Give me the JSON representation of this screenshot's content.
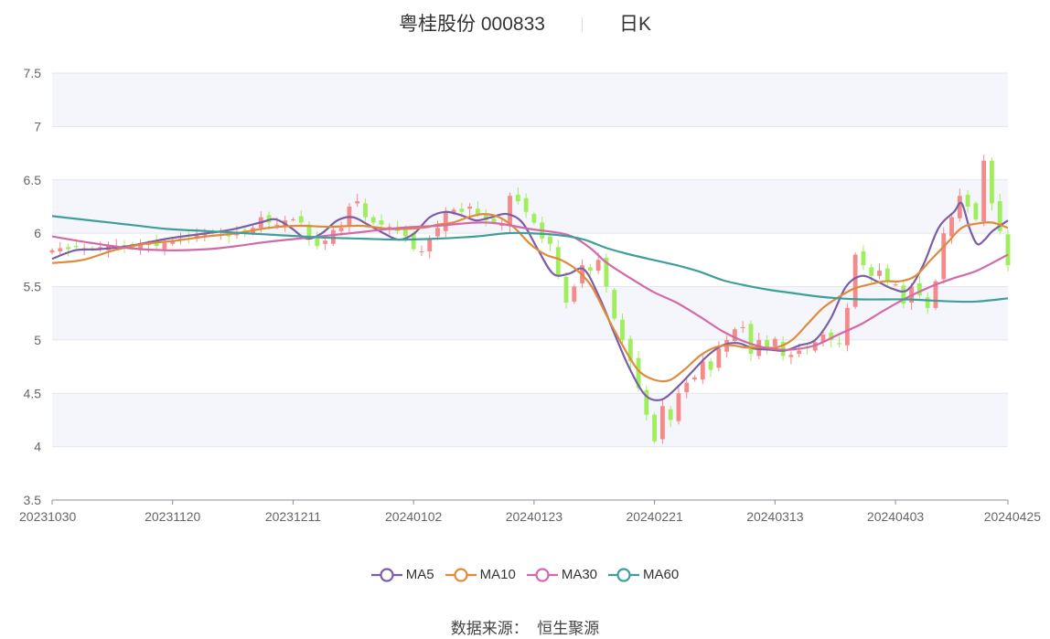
{
  "header": {
    "stock_title": "粤桂股份 000833",
    "period": "日K"
  },
  "source": {
    "label": "数据来源：",
    "provider": "恒生聚源"
  },
  "chart_data": {
    "type": "candlestick",
    "ylim": [
      3.5,
      7.5
    ],
    "yticks": [
      3.5,
      4,
      4.5,
      5,
      5.5,
      6,
      6.5,
      7,
      7.5
    ],
    "ytick_labels": [
      "3.5",
      "4",
      "4.5",
      "5",
      "5.5",
      "6",
      "6.5",
      "7",
      "7.5"
    ],
    "xtick_labels": [
      "20231030",
      "20231120",
      "20231211",
      "20240102",
      "20240123",
      "20240221",
      "20240313",
      "20240403",
      "20240425"
    ],
    "xtick_positions": [
      0,
      15,
      30,
      45,
      60,
      75,
      90,
      105,
      119
    ],
    "n_days": 120,
    "colors": {
      "up": "#f48a8a",
      "down": "#9fee5c",
      "MA5": "#7b5ea7",
      "MA10": "#e08a3c",
      "MA30": "#d36aa8",
      "MA60": "#3f9e9b"
    },
    "closes": [
      5.84,
      5.86,
      5.85,
      5.87,
      5.86,
      5.85,
      5.87,
      5.89,
      5.88,
      5.87,
      5.86,
      5.89,
      5.9,
      5.88,
      5.91,
      5.93,
      5.95,
      5.97,
      5.98,
      6.0,
      6.01,
      5.99,
      5.97,
      6.0,
      6.02,
      6.05,
      6.15,
      6.1,
      6.08,
      6.12,
      6.13,
      6.1,
      5.95,
      5.88,
      5.93,
      6.03,
      6.05,
      6.25,
      6.3,
      6.15,
      6.1,
      6.08,
      6.06,
      6.02,
      5.97,
      5.85,
      5.83,
      5.95,
      6.05,
      6.2,
      6.22,
      6.2,
      6.25,
      6.18,
      6.12,
      6.1,
      6.08,
      6.35,
      6.3,
      6.2,
      6.1,
      5.95,
      5.9,
      5.6,
      5.35,
      5.5,
      5.7,
      5.65,
      5.75,
      5.5,
      5.2,
      5.0,
      4.8,
      4.55,
      4.3,
      4.05,
      4.38,
      4.25,
      4.5,
      4.6,
      4.65,
      4.8,
      4.72,
      4.92,
      5.0,
      5.1,
      5.12,
      4.87,
      5.0,
      4.92,
      5.01,
      4.85,
      4.86,
      4.9,
      4.92,
      4.98,
      5.05,
      5.0,
      4.96,
      5.3,
      5.8,
      5.7,
      5.6,
      5.65,
      5.55,
      5.52,
      5.34,
      5.5,
      5.42,
      5.3,
      5.55,
      6.0,
      6.15,
      6.35,
      6.25,
      6.13,
      6.68,
      6.28,
      6.02,
      5.7
    ],
    "series": [
      {
        "name": "MA5",
        "points": [
          [
            0,
            5.76
          ],
          [
            3,
            5.84
          ],
          [
            6,
            5.85
          ],
          [
            10,
            5.88
          ],
          [
            15,
            5.95
          ],
          [
            19,
            5.99
          ],
          [
            23,
            6.03
          ],
          [
            27,
            6.1
          ],
          [
            29,
            6.13
          ],
          [
            31,
            6.05
          ],
          [
            33,
            5.95
          ],
          [
            35,
            6.0
          ],
          [
            37,
            6.12
          ],
          [
            39,
            6.15
          ],
          [
            41,
            6.08
          ],
          [
            43,
            6.0
          ],
          [
            45,
            5.94
          ],
          [
            47,
            6.0
          ],
          [
            49,
            6.15
          ],
          [
            51,
            6.2
          ],
          [
            53,
            6.17
          ],
          [
            55,
            6.12
          ],
          [
            57,
            6.15
          ],
          [
            59,
            6.18
          ],
          [
            61,
            6.1
          ],
          [
            63,
            5.85
          ],
          [
            65,
            5.62
          ],
          [
            67,
            5.62
          ],
          [
            69,
            5.66
          ],
          [
            71,
            5.4
          ],
          [
            73,
            5.05
          ],
          [
            75,
            4.72
          ],
          [
            77,
            4.48
          ],
          [
            79,
            4.44
          ],
          [
            81,
            4.55
          ],
          [
            83,
            4.7
          ],
          [
            85,
            4.85
          ],
          [
            87,
            4.95
          ],
          [
            89,
            4.97
          ],
          [
            91,
            4.92
          ],
          [
            93,
            4.91
          ],
          [
            95,
            4.9
          ],
          [
            97,
            4.95
          ],
          [
            99,
            5.0
          ],
          [
            101,
            5.2
          ],
          [
            103,
            5.5
          ],
          [
            105,
            5.6
          ],
          [
            107,
            5.55
          ],
          [
            109,
            5.48
          ],
          [
            111,
            5.47
          ],
          [
            113,
            5.7
          ],
          [
            115,
            6.05
          ],
          [
            117,
            6.2
          ],
          [
            118,
            6.28
          ],
          [
            119,
            6.05
          ],
          [
            120,
            5.9
          ],
          [
            121,
            5.94
          ],
          [
            122,
            6.02
          ],
          [
            124,
            6.12
          ]
        ]
      },
      {
        "name": "MA10",
        "points": [
          [
            0,
            5.72
          ],
          [
            4,
            5.75
          ],
          [
            8,
            5.84
          ],
          [
            12,
            5.9
          ],
          [
            16,
            5.93
          ],
          [
            20,
            5.97
          ],
          [
            24,
            6.0
          ],
          [
            28,
            6.05
          ],
          [
            32,
            6.07
          ],
          [
            36,
            6.06
          ],
          [
            40,
            6.07
          ],
          [
            44,
            6.04
          ],
          [
            48,
            6.05
          ],
          [
            50,
            6.08
          ],
          [
            52,
            6.1
          ],
          [
            54,
            6.15
          ],
          [
            56,
            6.18
          ],
          [
            58,
            6.15
          ],
          [
            60,
            6.05
          ],
          [
            62,
            5.9
          ],
          [
            64,
            5.8
          ],
          [
            66,
            5.75
          ],
          [
            68,
            5.66
          ],
          [
            70,
            5.5
          ],
          [
            72,
            5.22
          ],
          [
            74,
            4.95
          ],
          [
            76,
            4.72
          ],
          [
            78,
            4.63
          ],
          [
            80,
            4.62
          ],
          [
            82,
            4.72
          ],
          [
            84,
            4.85
          ],
          [
            86,
            4.93
          ],
          [
            88,
            4.95
          ],
          [
            90,
            4.93
          ],
          [
            92,
            4.93
          ],
          [
            94,
            4.93
          ],
          [
            96,
            5.0
          ],
          [
            98,
            5.15
          ],
          [
            100,
            5.3
          ],
          [
            102,
            5.4
          ],
          [
            104,
            5.48
          ],
          [
            106,
            5.52
          ],
          [
            108,
            5.55
          ],
          [
            110,
            5.55
          ],
          [
            112,
            5.6
          ],
          [
            114,
            5.75
          ],
          [
            116,
            5.9
          ],
          [
            118,
            6.05
          ],
          [
            120,
            6.09
          ],
          [
            122,
            6.1
          ],
          [
            124,
            6.05
          ]
        ]
      },
      {
        "name": "MA30",
        "points": [
          [
            0,
            5.97
          ],
          [
            5,
            5.91
          ],
          [
            10,
            5.86
          ],
          [
            15,
            5.84
          ],
          [
            20,
            5.85
          ],
          [
            24,
            5.88
          ],
          [
            28,
            5.92
          ],
          [
            32,
            5.95
          ],
          [
            36,
            5.98
          ],
          [
            40,
            6.01
          ],
          [
            45,
            6.05
          ],
          [
            50,
            6.07
          ],
          [
            55,
            6.1
          ],
          [
            58,
            6.09
          ],
          [
            62,
            6.04
          ],
          [
            66,
            6.0
          ],
          [
            68,
            5.95
          ],
          [
            70,
            5.85
          ],
          [
            72,
            5.72
          ],
          [
            75,
            5.58
          ],
          [
            78,
            5.45
          ],
          [
            81,
            5.35
          ],
          [
            84,
            5.22
          ],
          [
            87,
            5.08
          ],
          [
            90,
            4.98
          ],
          [
            93,
            4.92
          ],
          [
            96,
            4.91
          ],
          [
            99,
            4.95
          ],
          [
            102,
            5.05
          ],
          [
            105,
            5.15
          ],
          [
            108,
            5.28
          ],
          [
            111,
            5.4
          ],
          [
            114,
            5.5
          ],
          [
            117,
            5.58
          ],
          [
            120,
            5.65
          ],
          [
            124,
            5.8
          ]
        ]
      },
      {
        "name": "MA60",
        "points": [
          [
            0,
            6.16
          ],
          [
            5,
            6.12
          ],
          [
            10,
            6.08
          ],
          [
            15,
            6.04
          ],
          [
            20,
            6.02
          ],
          [
            25,
            6.0
          ],
          [
            30,
            5.98
          ],
          [
            35,
            5.96
          ],
          [
            40,
            5.95
          ],
          [
            45,
            5.94
          ],
          [
            50,
            5.95
          ],
          [
            55,
            5.97
          ],
          [
            59,
            6.0
          ],
          [
            62,
            6.0
          ],
          [
            66,
            5.98
          ],
          [
            69,
            5.94
          ],
          [
            72,
            5.86
          ],
          [
            75,
            5.8
          ],
          [
            78,
            5.75
          ],
          [
            81,
            5.7
          ],
          [
            84,
            5.64
          ],
          [
            87,
            5.56
          ],
          [
            90,
            5.51
          ],
          [
            93,
            5.47
          ],
          [
            96,
            5.44
          ],
          [
            99,
            5.41
          ],
          [
            102,
            5.39
          ],
          [
            105,
            5.38
          ],
          [
            108,
            5.38
          ],
          [
            111,
            5.38
          ],
          [
            114,
            5.37
          ],
          [
            117,
            5.36
          ],
          [
            120,
            5.36
          ],
          [
            124,
            5.39
          ]
        ]
      }
    ],
    "legend": [
      "MA5",
      "MA10",
      "MA30",
      "MA60"
    ]
  }
}
